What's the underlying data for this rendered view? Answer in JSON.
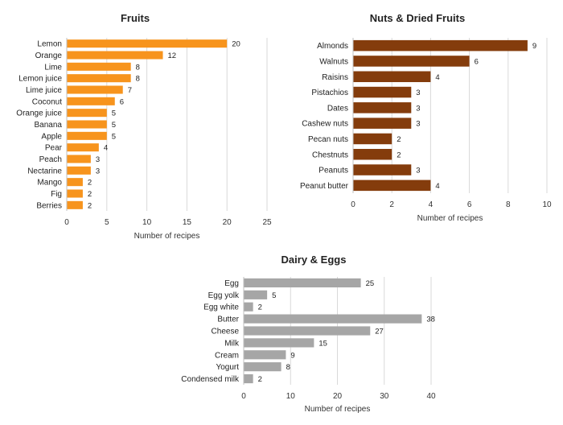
{
  "chart_data": [
    {
      "type": "bar",
      "orientation": "horizontal",
      "title": "Fruits",
      "xlabel": "Number of recipes",
      "ylabel": "",
      "xlim": [
        0,
        25
      ],
      "xticks": [
        0,
        5,
        10,
        15,
        20,
        25
      ],
      "color": "#f7941d",
      "categories": [
        "Lemon",
        "Orange",
        "Lime",
        "Lemon juice",
        "Lime juice",
        "Coconut",
        "Orange juice",
        "Banana",
        "Apple",
        "Pear",
        "Peach",
        "Nectarine",
        "Mango",
        "Fig",
        "Berries"
      ],
      "values": [
        20,
        12,
        8,
        8,
        7,
        6,
        5,
        5,
        5,
        4,
        3,
        3,
        2,
        2,
        2
      ]
    },
    {
      "type": "bar",
      "orientation": "horizontal",
      "title": "Nuts & Dried Fruits",
      "xlabel": "Number of recipes",
      "ylabel": "",
      "xlim": [
        0,
        10
      ],
      "xticks": [
        0,
        2,
        4,
        6,
        8,
        10
      ],
      "color": "#843c0c",
      "categories": [
        "Almonds",
        "Walnuts",
        "Raisins",
        "Pistachios",
        "Dates",
        "Cashew nuts",
        "Pecan nuts",
        "Chestnuts",
        "Peanuts",
        "Peanut butter"
      ],
      "values": [
        9,
        6,
        4,
        3,
        3,
        3,
        2,
        2,
        3,
        4
      ]
    },
    {
      "type": "bar",
      "orientation": "horizontal",
      "title": "Dairy & Eggs",
      "xlabel": "Number of recipes",
      "ylabel": "",
      "xlim": [
        0,
        40
      ],
      "xticks": [
        0,
        10,
        20,
        30,
        40
      ],
      "color": "#a6a6a6",
      "categories": [
        "Egg",
        "Egg yolk",
        "Egg white",
        "Butter",
        "Cheese",
        "Milk",
        "Cream",
        "Yogurt",
        "Condensed milk"
      ],
      "values": [
        25,
        5,
        2,
        38,
        27,
        15,
        9,
        8,
        2
      ]
    }
  ]
}
